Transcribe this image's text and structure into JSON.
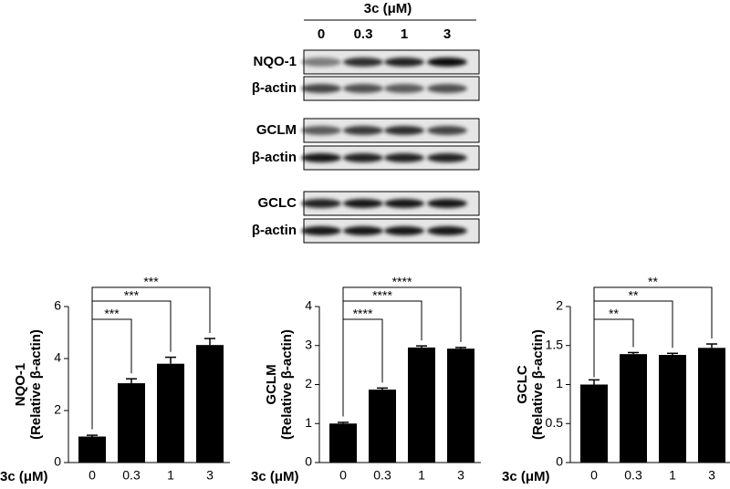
{
  "blot": {
    "title": "3c (μM)",
    "lanes": [
      "0",
      "0.3",
      "1",
      "3"
    ],
    "rows": [
      "NQO-1",
      "β-actin",
      "GCLM",
      "β-actin",
      "GCLC",
      "β-actin"
    ]
  },
  "chart_data": [
    {
      "type": "bar",
      "ylabel": [
        "NQO-1",
        "(Relative β-actin)"
      ],
      "xlabel": "3c (μM)",
      "color": "#000000",
      "categories": [
        "0",
        "0.3",
        "1",
        "3"
      ],
      "values": [
        1,
        3.05,
        3.8,
        4.52
      ],
      "errors": [
        0.05,
        0.17,
        0.25,
        0.25
      ],
      "ylim": [
        0,
        6
      ],
      "yticks": [
        0,
        2,
        4,
        6
      ],
      "significance": [
        "***",
        "***",
        "***"
      ]
    },
    {
      "type": "bar",
      "ylabel": [
        "GCLM",
        "(Relative β-actin)"
      ],
      "xlabel": "3c (μM)",
      "color": "#000000",
      "categories": [
        "0",
        "0.3",
        "1",
        "3"
      ],
      "values": [
        1,
        1.87,
        2.95,
        2.92
      ],
      "errors": [
        0.03,
        0.04,
        0.04,
        0.03
      ],
      "ylim": [
        0,
        4
      ],
      "yticks": [
        0,
        1,
        2,
        3,
        4
      ],
      "significance": [
        "****",
        "****",
        "****"
      ]
    },
    {
      "type": "bar",
      "ylabel": [
        "GCLC",
        "(Relative β-actin)"
      ],
      "xlabel": "3c (μM)",
      "color": "#000000",
      "categories": [
        "0",
        "0.3",
        "1",
        "3"
      ],
      "values": [
        1,
        1.39,
        1.38,
        1.47
      ],
      "errors": [
        0.06,
        0.02,
        0.02,
        0.05
      ],
      "ylim": [
        0,
        2
      ],
      "yticks": [
        0,
        0.5,
        1,
        1.5,
        2
      ],
      "significance": [
        "**",
        "**",
        "**"
      ]
    }
  ]
}
